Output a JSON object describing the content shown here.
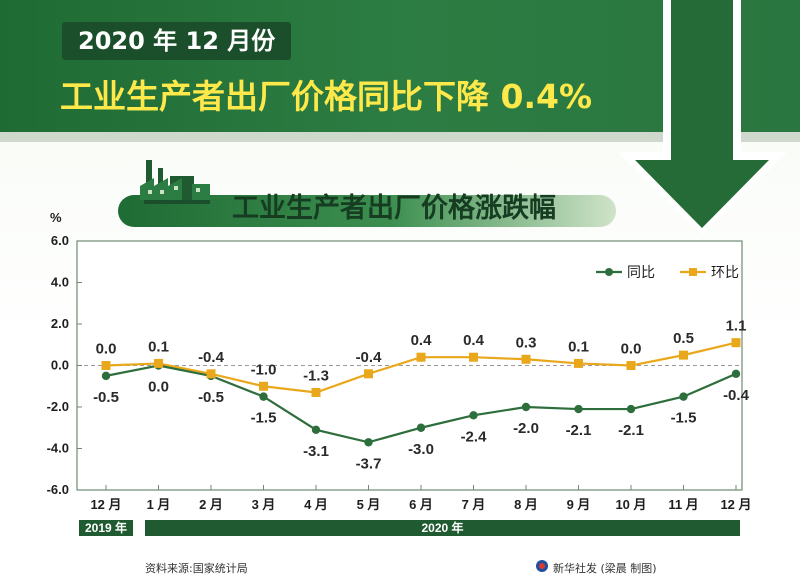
{
  "header": {
    "period": "2020 年 12 月份",
    "headline": "工业生产者出厂价格同比下降 0.4%"
  },
  "chart_title": "工业生产者出厂价格涨跌幅",
  "chart_data": {
    "type": "line",
    "title": "工业生产者出厂价格涨跌幅",
    "ylabel": "%",
    "ylim": [
      -6.0,
      6.0
    ],
    "y_ticks": [
      "6.0",
      "4.0",
      "2.0",
      "0.0",
      "-2.0",
      "-4.0",
      "-6.0"
    ],
    "y_tick_values": [
      6,
      4,
      2,
      0,
      -2,
      -4,
      -6
    ],
    "categories": [
      "12 月",
      "1 月",
      "2 月",
      "3 月",
      "4 月",
      "5 月",
      "6 月",
      "7 月",
      "8 月",
      "9 月",
      "10 月",
      "11 月",
      "12 月"
    ],
    "series": [
      {
        "name": "同比",
        "color": "#2e6e3c",
        "marker": "circle",
        "values": [
          -0.5,
          0.0,
          -0.5,
          -1.5,
          -3.1,
          -3.7,
          -3.0,
          -2.4,
          -2.0,
          -2.1,
          -2.1,
          -1.5,
          -0.4
        ],
        "labels": [
          "-0.5",
          "0.0",
          "-0.5",
          "-1.5",
          "-3.1",
          "-3.7",
          "-3.0",
          "-2.4",
          "-2.0",
          "-2.1",
          "-2.1",
          "-1.5",
          "-0.4"
        ]
      },
      {
        "name": "环比",
        "color": "#e9a71b",
        "marker": "square",
        "values": [
          0.0,
          0.1,
          -0.4,
          -1.0,
          -1.3,
          -0.4,
          0.4,
          0.4,
          0.3,
          0.1,
          0.0,
          0.5,
          1.1
        ],
        "labels": [
          "0.0",
          "0.1",
          "-0.4",
          "-1.0",
          "-1.3",
          "-0.4",
          "0.4",
          "0.4",
          "0.3",
          "0.1",
          "0.0",
          "0.5",
          "1.1"
        ]
      }
    ],
    "legend_position": "top-right",
    "grid": false,
    "zero_line": "dashed",
    "year_bands": [
      "2019 年",
      "2020 年"
    ]
  },
  "footer": {
    "source": "资料来源:国家统计局",
    "credit": "新华社发 (梁晨 制图)"
  },
  "colors": {
    "header_green": "#2c7d43",
    "headline_yellow": "#ffe94a",
    "yoy_green": "#2e6e3c",
    "mom_orange": "#e9a71b"
  }
}
